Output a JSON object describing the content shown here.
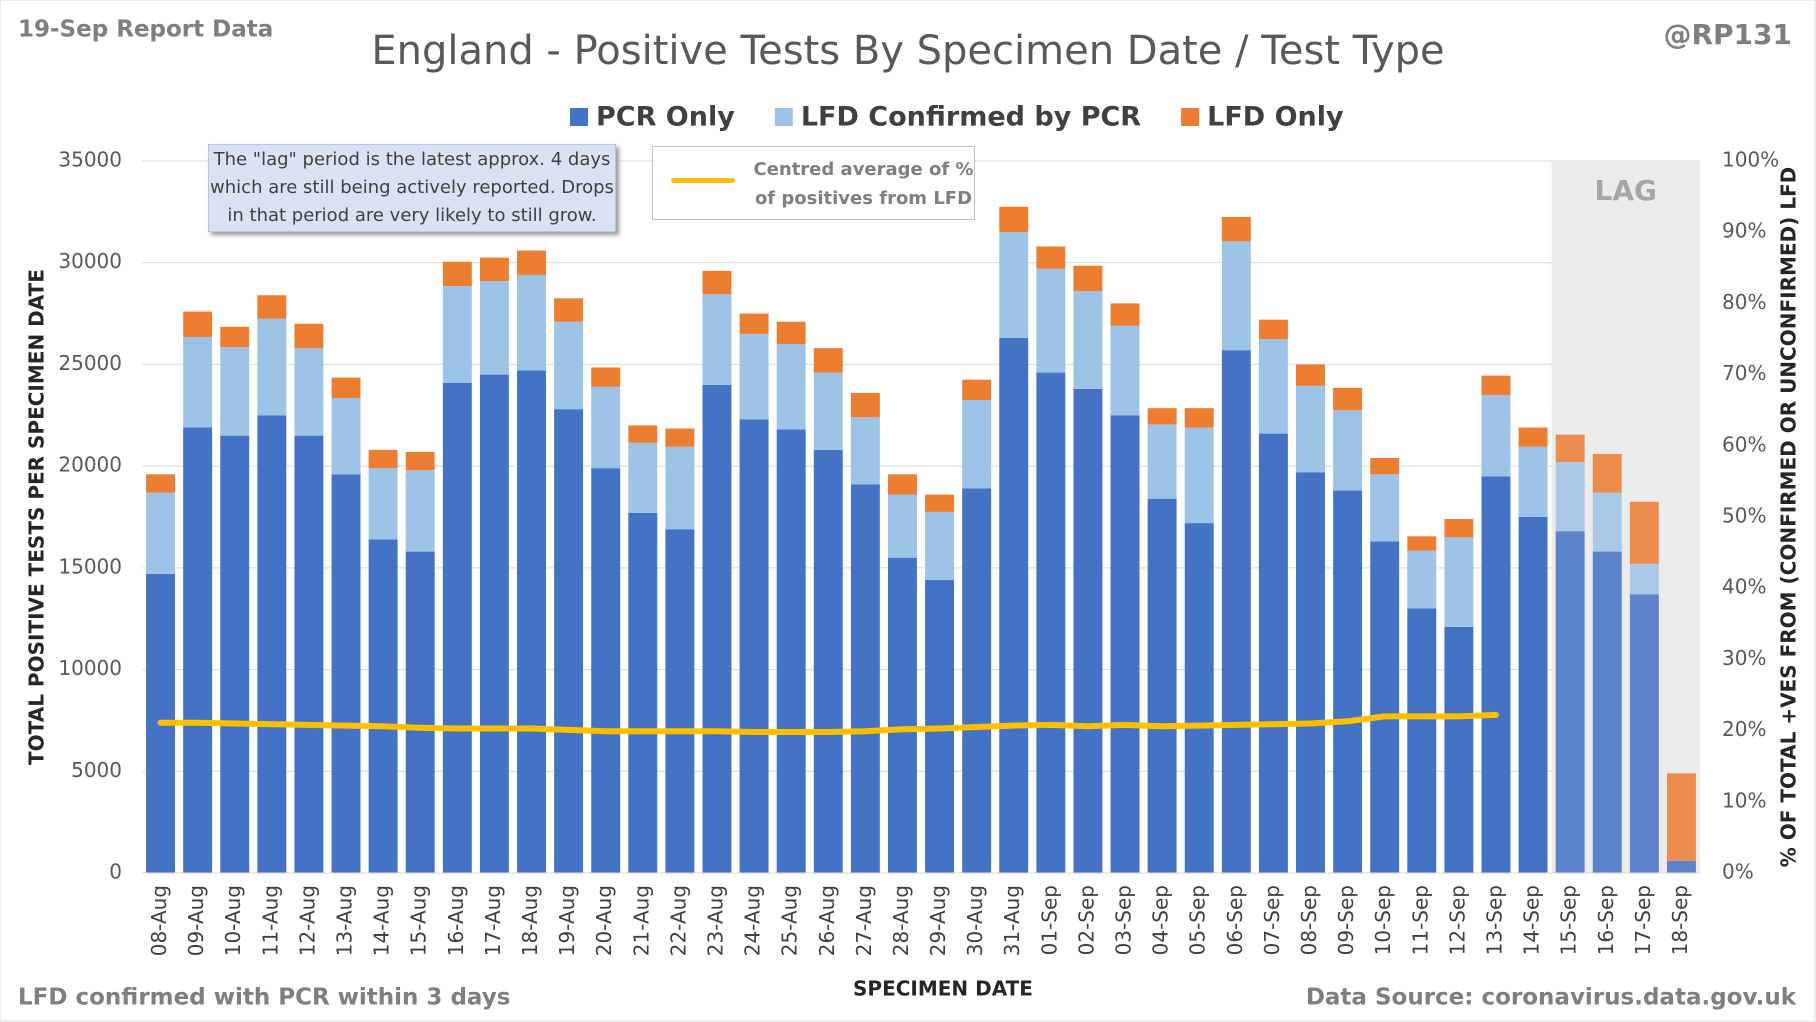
{
  "chart_data": {
    "type": "bar",
    "stacked": true,
    "title": "England - Positive Tests By Specimen Date / Test Type",
    "report_label": "19-Sep Report Data",
    "author": "@RP131",
    "xlabel": "SPECIMEN DATE",
    "ylabel": "TOTAL POSITIVE TESTS PER SPECIMEN DATE",
    "y2label": "% OF TOTAL +VES FROM (CONFIRMED OR UNCONFIRMED) LFD",
    "footnote_left": "LFD confirmed with PCR within 3 days",
    "footnote_right": "Data Source: coronavirus.data.gov.uk",
    "lag_label": "LAG",
    "note": [
      "The \"lag\" period is the latest approx. 4 days",
      "which are still being actively reported.  Drops",
      "in that period are very likely to still grow."
    ],
    "grid": true,
    "categories": [
      "08-Aug",
      "09-Aug",
      "10-Aug",
      "11-Aug",
      "12-Aug",
      "13-Aug",
      "14-Aug",
      "15-Aug",
      "16-Aug",
      "17-Aug",
      "18-Aug",
      "19-Aug",
      "20-Aug",
      "21-Aug",
      "22-Aug",
      "23-Aug",
      "24-Aug",
      "25-Aug",
      "26-Aug",
      "27-Aug",
      "28-Aug",
      "29-Aug",
      "30-Aug",
      "31-Aug",
      "01-Sep",
      "02-Sep",
      "03-Sep",
      "04-Sep",
      "05-Sep",
      "06-Sep",
      "07-Sep",
      "08-Sep",
      "09-Sep",
      "10-Sep",
      "11-Sep",
      "12-Sep",
      "13-Sep",
      "14-Sep",
      "15-Sep",
      "16-Sep",
      "17-Sep",
      "18-Sep"
    ],
    "series": [
      {
        "name": "PCR Only",
        "color": "#4472c4",
        "values": [
          14700,
          21900,
          21500,
          22500,
          21500,
          19600,
          16400,
          15800,
          24100,
          24500,
          24700,
          22800,
          19900,
          17700,
          16900,
          24000,
          22300,
          21800,
          20800,
          19100,
          15500,
          14400,
          18900,
          26300,
          24600,
          23800,
          22500,
          18400,
          17200,
          25700,
          21600,
          19700,
          18800,
          16300,
          13000,
          12100,
          19500,
          17500,
          16800,
          15800,
          13700,
          600
        ]
      },
      {
        "name": "LFD Confirmed by PCR",
        "color": "#9dc3e6",
        "values": [
          4000,
          4450,
          4350,
          4750,
          4300,
          3750,
          3500,
          4000,
          4750,
          4600,
          4700,
          4300,
          4000,
          3450,
          4050,
          4450,
          4200,
          4200,
          3800,
          3300,
          3100,
          3350,
          4350,
          5200,
          5100,
          4800,
          4400,
          3650,
          4700,
          5350,
          4650,
          4250,
          3950,
          3300,
          2850,
          4400,
          4000,
          3450,
          3400,
          2900,
          1500,
          0
        ]
      },
      {
        "name": "LFD Only",
        "color": "#ed7d31",
        "values": [
          900,
          1250,
          1000,
          1150,
          1200,
          1000,
          900,
          900,
          1200,
          1150,
          1200,
          1150,
          950,
          850,
          900,
          1150,
          1000,
          1100,
          1200,
          1200,
          1000,
          850,
          1000,
          1250,
          1100,
          1250,
          1100,
          800,
          950,
          1200,
          950,
          1050,
          1100,
          800,
          700,
          900,
          950,
          950,
          1350,
          1900,
          3050,
          4300
        ]
      },
      {
        "name": "Centred average of % of positives from LFD",
        "type": "line",
        "axis": "y2",
        "color": "#ffc000",
        "values": [
          21.1,
          21.1,
          21.0,
          20.9,
          20.8,
          20.7,
          20.6,
          20.4,
          20.3,
          20.3,
          20.3,
          20.1,
          19.9,
          19.9,
          19.9,
          19.9,
          19.8,
          19.8,
          19.8,
          19.9,
          20.2,
          20.3,
          20.5,
          20.7,
          20.8,
          20.6,
          20.8,
          20.6,
          20.7,
          20.8,
          20.9,
          21.0,
          21.3,
          22.0,
          22.0,
          22.0,
          22.2,
          null,
          null,
          null,
          null,
          null
        ]
      }
    ],
    "ylim": [
      0,
      35000
    ],
    "yticks": [
      0,
      5000,
      10000,
      15000,
      20000,
      25000,
      30000,
      35000
    ],
    "y2lim": [
      0,
      100
    ],
    "y2ticks": [
      {
        "value": 0,
        "label": "0%"
      },
      {
        "value": 10,
        "label": "10%"
      },
      {
        "value": 20,
        "label": "20%"
      },
      {
        "value": 30,
        "label": "30%"
      },
      {
        "value": 40,
        "label": "40%"
      },
      {
        "value": 50,
        "label": "50%"
      },
      {
        "value": 60,
        "label": "60%"
      },
      {
        "value": 70,
        "label": "70%"
      },
      {
        "value": 80,
        "label": "80%"
      },
      {
        "value": 90,
        "label": "90%"
      },
      {
        "value": 100,
        "label": "100%"
      }
    ]
  }
}
